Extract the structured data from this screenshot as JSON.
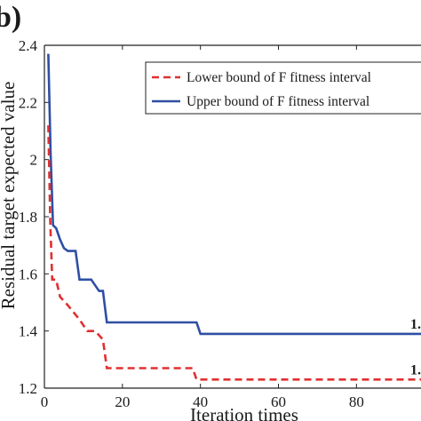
{
  "panel_label": "b)",
  "chart_data": {
    "type": "line",
    "xlabel": "Iteration times",
    "ylabel": "Residual target expected value",
    "xlim": [
      0,
      97
    ],
    "ylim": [
      1.2,
      2.4
    ],
    "xticks": [
      "0",
      "20",
      "40",
      "60",
      "80"
    ],
    "yticks": [
      "1.2",
      "1.4",
      "1.6",
      "1.8",
      "2",
      "2.2",
      "2.4"
    ],
    "grid": false,
    "legend_position": "top-right",
    "series": [
      {
        "name": "Upper bound of F fitness interval",
        "color": "#2f4fa3",
        "dash": "solid",
        "end_label": "1.",
        "x": [
          1,
          1.6,
          2.2,
          3,
          4,
          5,
          6,
          8,
          9,
          12,
          13,
          14,
          15,
          16,
          39,
          40,
          97
        ],
        "y": [
          2.37,
          2.02,
          1.77,
          1.76,
          1.72,
          1.69,
          1.68,
          1.68,
          1.58,
          1.58,
          1.56,
          1.54,
          1.54,
          1.43,
          1.43,
          1.39,
          1.39
        ]
      },
      {
        "name": "Lower bound of F fitness interval",
        "color": "#e03030",
        "dash": "dashed",
        "end_label": "1.",
        "x": [
          1,
          1.5,
          2,
          3,
          4,
          6,
          9,
          11,
          13,
          15,
          16,
          38,
          39,
          97
        ],
        "y": [
          2.12,
          1.78,
          1.58,
          1.58,
          1.52,
          1.49,
          1.44,
          1.4,
          1.4,
          1.37,
          1.27,
          1.27,
          1.23,
          1.23
        ]
      }
    ]
  }
}
